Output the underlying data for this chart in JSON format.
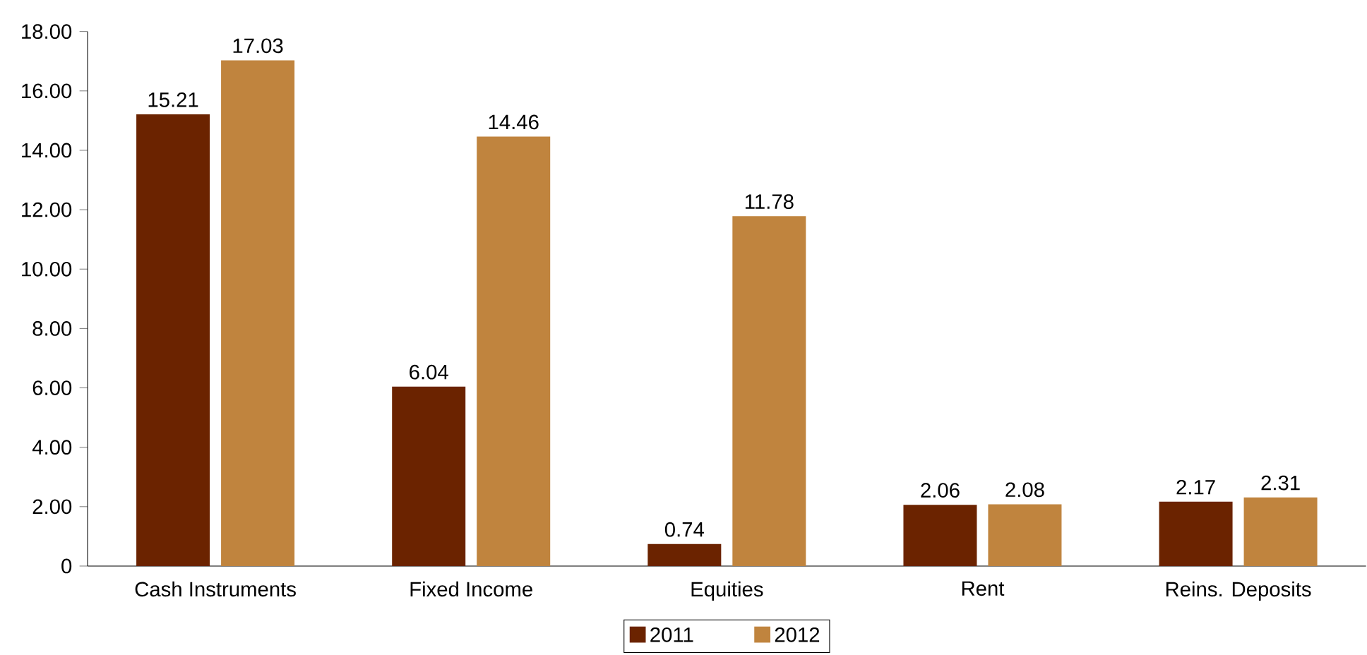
{
  "chart_data": {
    "type": "bar",
    "categories": [
      "Cash Instruments",
      "Fixed Income",
      "Equities",
      "Rent",
      "Reins. Deposits"
    ],
    "series": [
      {
        "name": "2011",
        "color": "#6b2300",
        "values": [
          15.21,
          6.04,
          0.74,
          2.06,
          2.17
        ]
      },
      {
        "name": "2012",
        "color": "#c0843e",
        "values": [
          17.03,
          14.46,
          11.78,
          2.08,
          2.31
        ]
      }
    ],
    "ylim": [
      0,
      18
    ],
    "yticks": [
      0,
      {
        "value": 2,
        "label": "2.00"
      },
      {
        "value": 4,
        "label": "4.00"
      },
      {
        "value": 6,
        "label": "6.00"
      },
      {
        "value": 8,
        "label": "8.00"
      },
      {
        "value": 10,
        "label": "10.00"
      },
      {
        "value": 12,
        "label": "12.00"
      },
      {
        "value": 14,
        "label": "14.00"
      },
      {
        "value": 16,
        "label": "16.00"
      },
      {
        "value": 18,
        "label": "18.00"
      }
    ],
    "data_labels": true,
    "grid": false,
    "legend": "bottom"
  }
}
